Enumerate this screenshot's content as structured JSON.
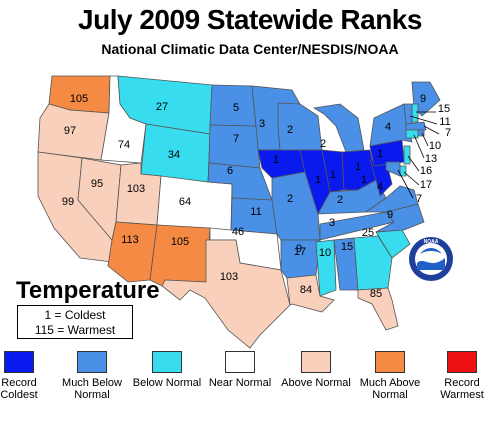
{
  "title": "July 2009 Statewide Ranks",
  "subtitle": "National Climatic Data Center/NESDIS/NOAA",
  "variable_label": "Temperature",
  "key": {
    "coldest": "1 = Coldest",
    "warmest": "115 = Warmest"
  },
  "logo_text": "NOAA",
  "legend": [
    {
      "label": "Record Coldest",
      "color": "#0a1aef"
    },
    {
      "label": "Much Below Normal",
      "color": "#4a90e6"
    },
    {
      "label": "Below Normal",
      "color": "#38dcef"
    },
    {
      "label": "Near Normal",
      "color": "#ffffff"
    },
    {
      "label": "Above Normal",
      "color": "#f9d0bb"
    },
    {
      "label": "Much Above Normal",
      "color": "#f58a44"
    },
    {
      "label": "Record Warmest",
      "color": "#ee1111"
    }
  ],
  "states": [
    {
      "state": "WA",
      "rank": 105
    },
    {
      "state": "OR",
      "rank": 97
    },
    {
      "state": "CA",
      "rank": 99
    },
    {
      "state": "ID",
      "rank": 74
    },
    {
      "state": "NV",
      "rank": 95
    },
    {
      "state": "MT",
      "rank": 27
    },
    {
      "state": "WY",
      "rank": 34
    },
    {
      "state": "UT",
      "rank": 103
    },
    {
      "state": "CO",
      "rank": 64
    },
    {
      "state": "AZ",
      "rank": 113
    },
    {
      "state": "NM",
      "rank": 105
    },
    {
      "state": "ND",
      "rank": 5
    },
    {
      "state": "SD",
      "rank": 7
    },
    {
      "state": "NE",
      "rank": 6
    },
    {
      "state": "KS",
      "rank": 11
    },
    {
      "state": "OK",
      "rank": 46
    },
    {
      "state": "TX",
      "rank": 103
    },
    {
      "state": "MN",
      "rank": 3
    },
    {
      "state": "IA",
      "rank": 1
    },
    {
      "state": "MO",
      "rank": 2
    },
    {
      "state": "AR",
      "rank": 9
    },
    {
      "state": "LA",
      "rank": 84
    },
    {
      "state": "WI",
      "rank": 2
    },
    {
      "state": "IL",
      "rank": 1
    },
    {
      "state": "MI",
      "rank": 2
    },
    {
      "state": "IN",
      "rank": 1
    },
    {
      "state": "OH",
      "rank": 1
    },
    {
      "state": "KY",
      "rank": 2
    },
    {
      "state": "TN",
      "rank": 3
    },
    {
      "state": "MS",
      "rank": 17
    },
    {
      "state": "AL",
      "rank": 10
    },
    {
      "state": "GA",
      "rank": 15
    },
    {
      "state": "FL",
      "rank": 85
    },
    {
      "state": "SC",
      "rank": 25
    },
    {
      "state": "NC",
      "rank": 9
    },
    {
      "state": "VA",
      "rank": 4
    },
    {
      "state": "WV",
      "rank": 1
    },
    {
      "state": "PA",
      "rank": 1
    },
    {
      "state": "NY",
      "rank": 4
    },
    {
      "state": "ME",
      "rank": 9
    },
    {
      "state": "NH",
      "rank": 15
    },
    {
      "state": "VT",
      "rank": 11
    },
    {
      "state": "MA",
      "rank": 7
    },
    {
      "state": "RI",
      "rank": 10
    },
    {
      "state": "CT",
      "rank": 13
    },
    {
      "state": "NJ",
      "rank": 16
    },
    {
      "state": "DE",
      "rank": 17
    },
    {
      "state": "MD",
      "rank": 7
    }
  ]
}
